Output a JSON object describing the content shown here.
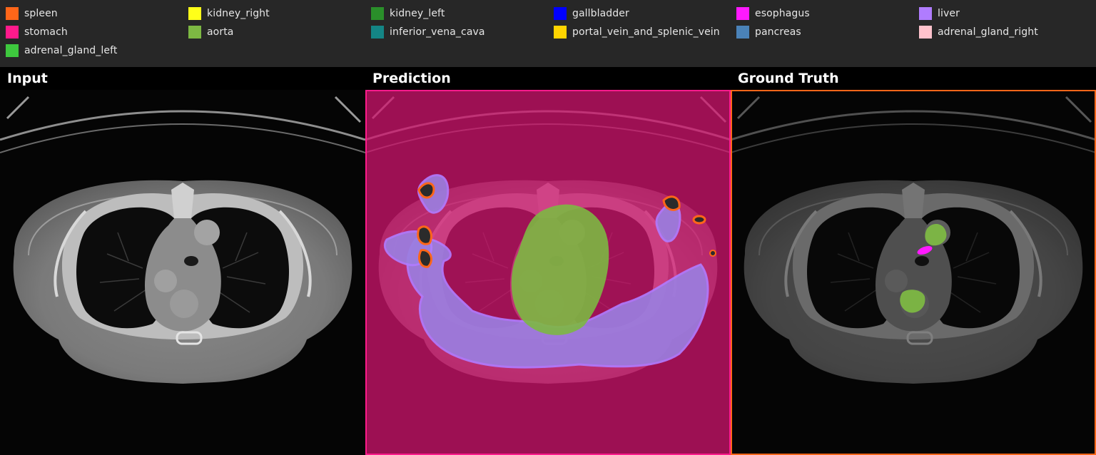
{
  "legend": {
    "items": [
      {
        "label": "spleen",
        "color": "#ff6619"
      },
      {
        "label": "kidney_right",
        "color": "#ffff19"
      },
      {
        "label": "kidney_left",
        "color": "#2a8f2a"
      },
      {
        "label": "gallbladder",
        "color": "#0000ff"
      },
      {
        "label": "esophagus",
        "color": "#ff19ff"
      },
      {
        "label": "liver",
        "color": "#b07cff"
      },
      {
        "label": "stomach",
        "color": "#ff1a8c"
      },
      {
        "label": "aorta",
        "color": "#7db843"
      },
      {
        "label": "inferior_vena_cava",
        "color": "#148585"
      },
      {
        "label": "portal_vein_and_splenic_vein",
        "color": "#ffd400"
      },
      {
        "label": "pancreas",
        "color": "#4a82b8"
      },
      {
        "label": "adrenal_gland_right",
        "color": "#ffc2cc"
      },
      {
        "label": "adrenal_gland_left",
        "color": "#3ec83e"
      }
    ]
  },
  "panels": {
    "input": {
      "title": "Input"
    },
    "prediction": {
      "title": "Prediction",
      "frame_color": "#ff1a8c"
    },
    "ground_truth": {
      "title": "Ground Truth",
      "frame_color": "#ff6619"
    }
  }
}
